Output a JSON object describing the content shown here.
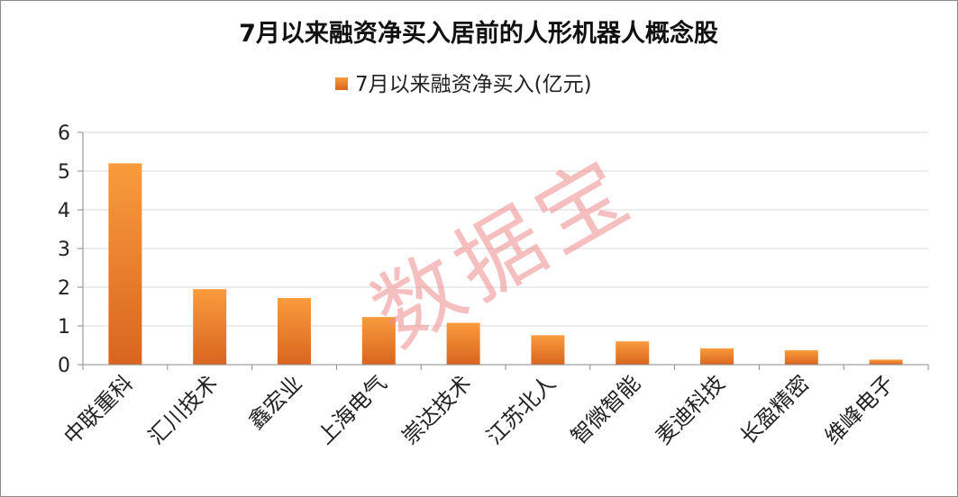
{
  "chart_data": {
    "type": "bar",
    "title": "7月以来融资净买入居前的人形机器人概念股",
    "series": [
      {
        "name": "7月以来融资净买入(亿元)",
        "values": [
          5.2,
          1.95,
          1.72,
          1.23,
          1.08,
          0.76,
          0.6,
          0.42,
          0.37,
          0.13
        ]
      }
    ],
    "categories": [
      "中联重科",
      "汇川技术",
      "鑫宏业",
      "上海电气",
      "崇达技术",
      "江苏北人",
      "智微智能",
      "麦迪科技",
      "长盈精密",
      "维峰电子"
    ],
    "ylim": [
      0,
      6
    ],
    "yticks": [
      0,
      1,
      2,
      3,
      4,
      5,
      6
    ],
    "grid": true,
    "legend_position": "top",
    "colors": {
      "bar_top": "#f99b3d",
      "bar_bottom": "#d9651f",
      "grid": "#d9d9d9",
      "axis": "#8a8a8a"
    }
  },
  "watermark": "数据宝"
}
